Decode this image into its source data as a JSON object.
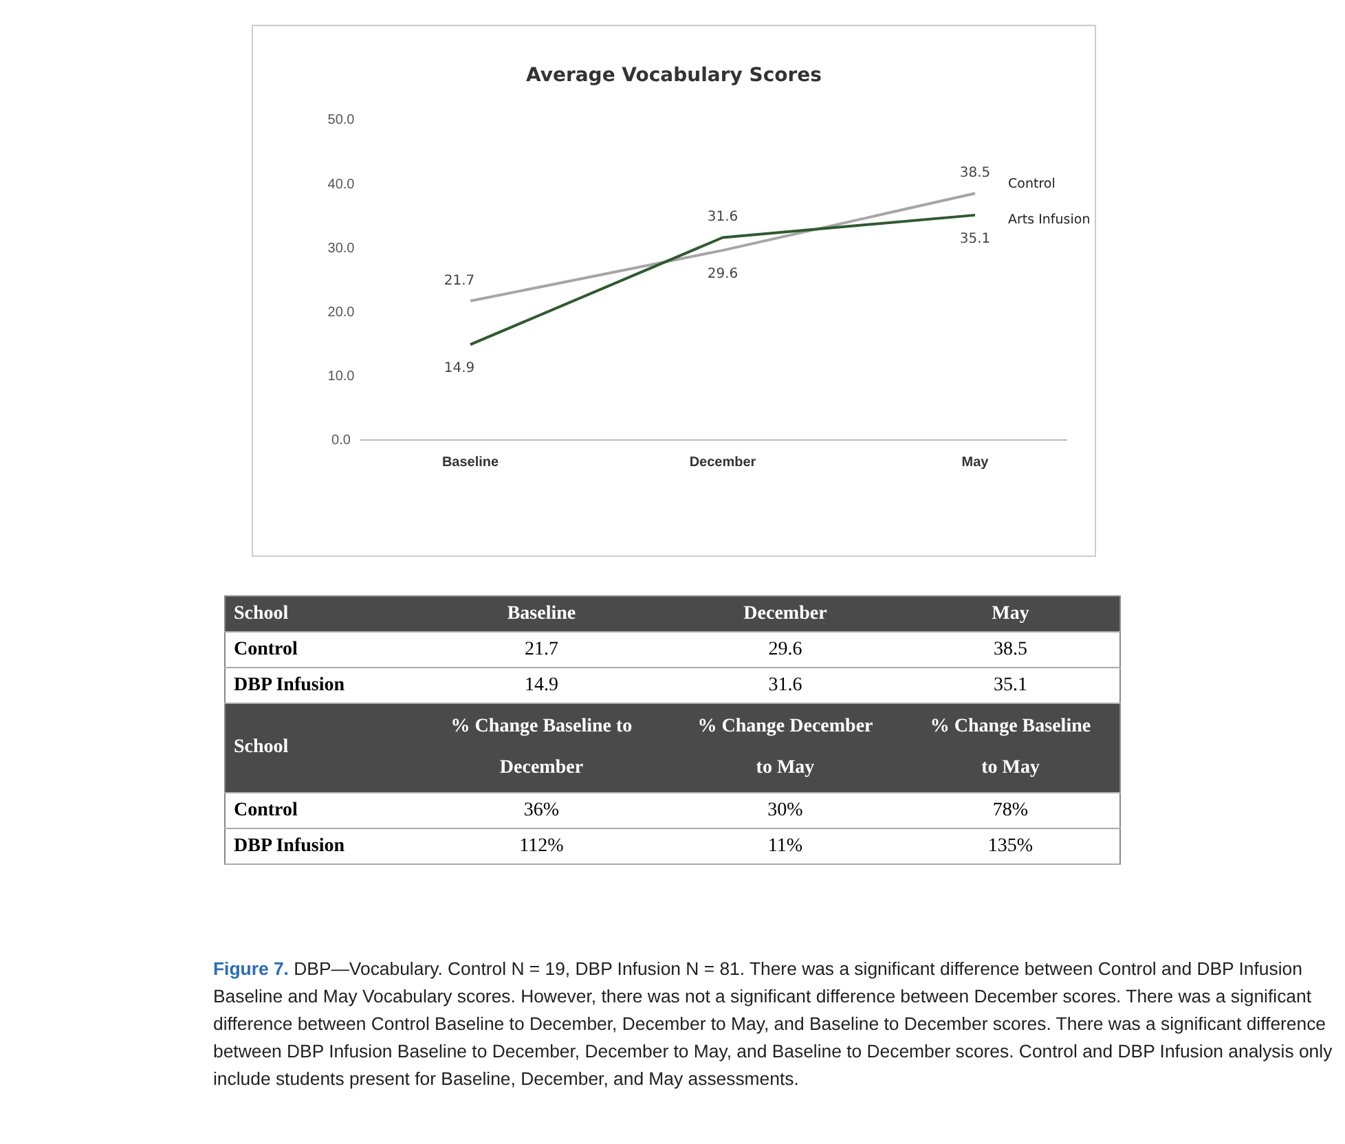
{
  "chart_data": [
    {
      "type": "line",
      "title": "Average Vocabulary Scores",
      "categories": [
        "Baseline",
        "December",
        "May"
      ],
      "series": [
        {
          "name": "Control",
          "color": "#a6a6a6",
          "values": [
            21.7,
            29.6,
            38.5
          ]
        },
        {
          "name": "Arts Infusion",
          "color": "#2f5a2f",
          "values": [
            14.9,
            31.6,
            35.1
          ]
        }
      ],
      "ylim": [
        0,
        50
      ],
      "yticks": [
        {
          "value": 0,
          "label": "0.0"
        },
        {
          "value": 10,
          "label": "10.0"
        },
        {
          "value": 20,
          "label": "20.0"
        },
        {
          "value": 30,
          "label": "30.0"
        },
        {
          "value": 40,
          "label": "40.0"
        },
        {
          "value": 50,
          "label": "50.0"
        }
      ],
      "grid": false,
      "legend": "right",
      "data_labels": true,
      "marker": "none"
    },
    {
      "type": "other",
      "annotations": [
        "School",
        "Baseline",
        "December",
        "May",
        "Control",
        "21.7",
        "29.6",
        "38.5",
        "DBP Infusion",
        "14.9",
        "31.6",
        "35.1",
        "School",
        "% Change Baseline to December",
        "% Change December to May",
        "% Change Baseline to May",
        "Control",
        "36%",
        "30%",
        "78%",
        "DBP Infusion",
        "112%",
        "11%",
        "135%",
        "Figure 7.",
        "DBP—Vocabulary. Control N = 19, DBP Infusion N = 81. There was a significant difference between Control and DBP Infusion Baseline and May Vocabulary scores. However, there was not a significant difference between December scores. There was a significant difference between Control Baseline to December, December to May, and Baseline to December scores. There was a significant difference between DBP Infusion Baseline to December, December to May, and Baseline to December scores. Control and DBP Infusion analysis only include students present for Baseline, December, and May assessments."
      ]
    }
  ]
}
